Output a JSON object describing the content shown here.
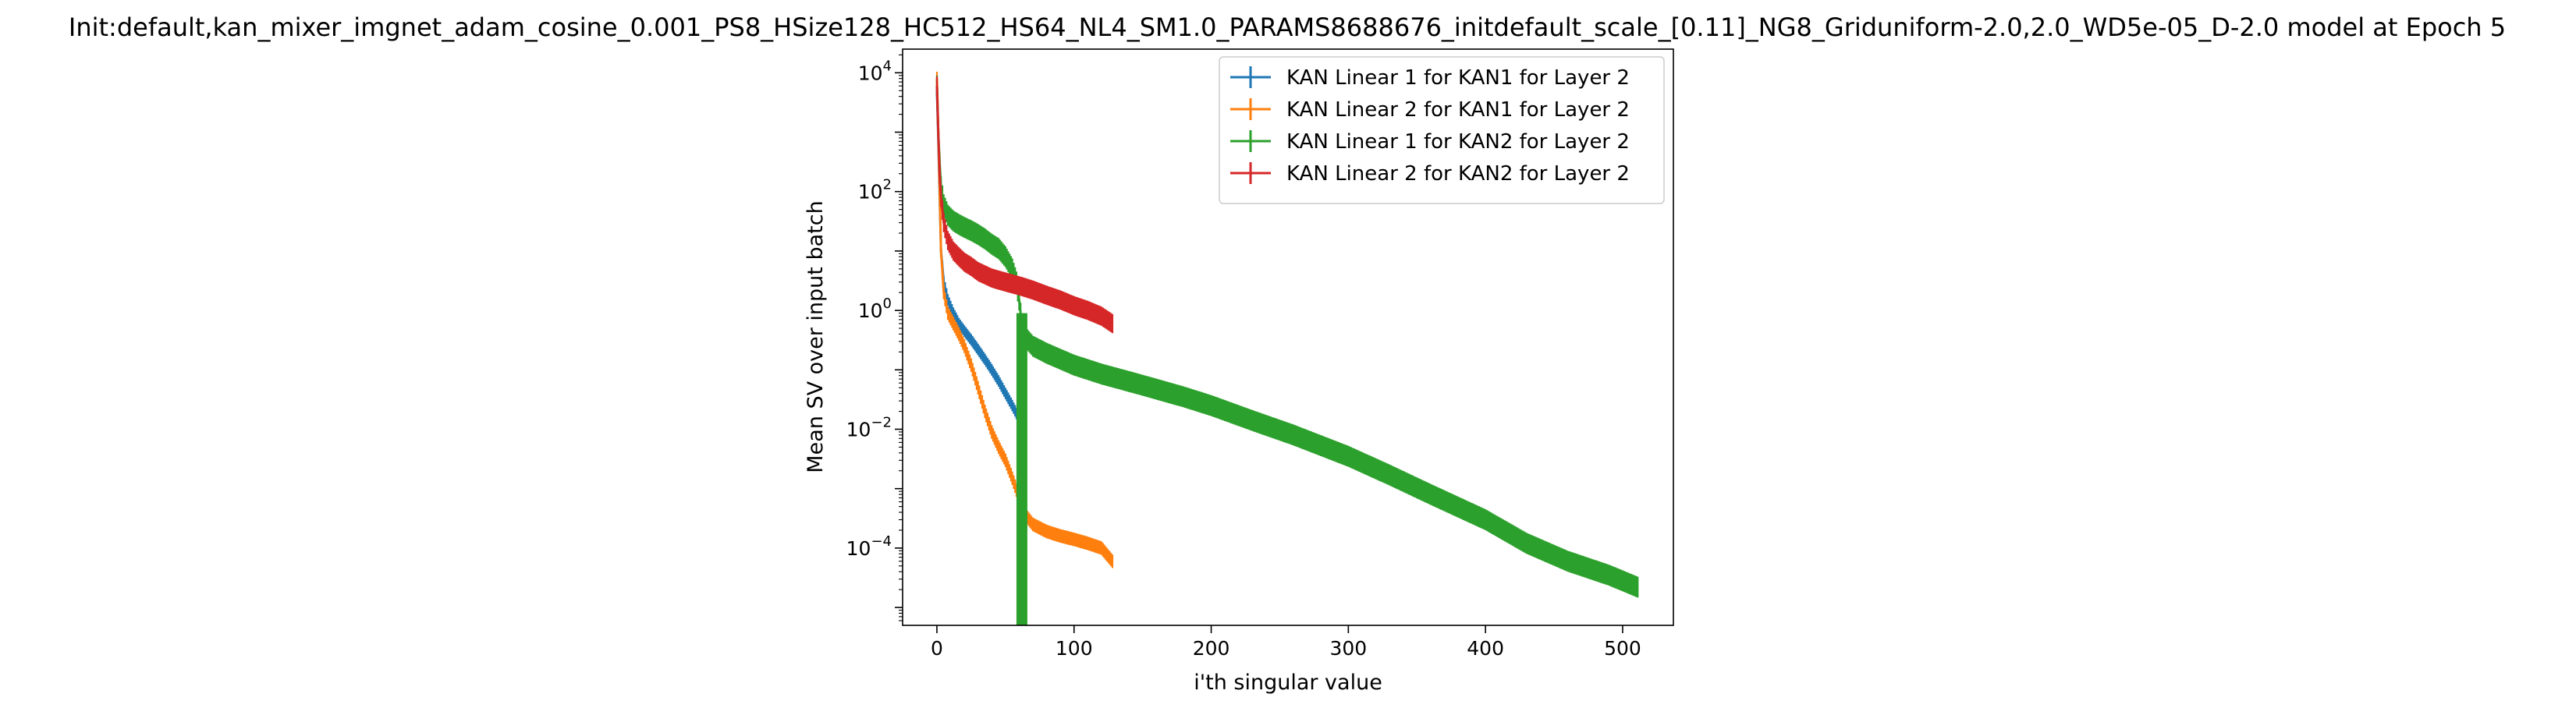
{
  "chart_data": {
    "type": "line",
    "title": "Init:default,kan_mixer_imgnet_adam_cosine_0.001_PS8_HSize128_HC512_HS64_NL4_SM1.0_PARAMS8688676_initdefault_scale_[0.11]_NG8_Griduniform-2.0,2.0_WD5e-05_D-2.0 model at Epoch 5",
    "xlabel": "i'th singular value",
    "ylabel": "Mean SV over input batch",
    "xlim": [
      -25,
      537
    ],
    "ylim": [
      5e-06,
      25000
    ],
    "yscale": "log",
    "grid": false,
    "legend_position": "top-right",
    "x_ticks": [
      {
        "value": 0,
        "label": "0"
      },
      {
        "value": 100,
        "label": "100"
      },
      {
        "value": 200,
        "label": "200"
      },
      {
        "value": 300,
        "label": "300"
      },
      {
        "value": 400,
        "label": "400"
      },
      {
        "value": 500,
        "label": "500"
      }
    ],
    "y_ticks": [
      {
        "value": 0.0001,
        "base": "10",
        "exp": "−4"
      },
      {
        "value": 0.01,
        "base": "10",
        "exp": "−2"
      },
      {
        "value": 1,
        "base": "10",
        "exp": "0"
      },
      {
        "value": 100,
        "base": "10",
        "exp": "2"
      },
      {
        "value": 10000,
        "base": "10",
        "exp": "4"
      }
    ],
    "series": [
      {
        "name": "KAN Linear 1 for KAN1 for Layer 2",
        "color": "#1f77b4",
        "x": [
          0,
          1,
          2,
          3,
          5,
          8,
          12,
          16,
          20,
          25,
          30,
          35,
          40,
          45,
          50,
          55,
          60,
          63
        ],
        "y": [
          5000,
          800,
          80,
          10,
          3,
          1.5,
          0.9,
          0.6,
          0.45,
          0.32,
          0.22,
          0.15,
          0.1,
          0.065,
          0.04,
          0.025,
          0.015,
          0.01
        ],
        "err_ratio": 1.25
      },
      {
        "name": "KAN Linear 2 for KAN1 for Layer 2",
        "color": "#ff7f0e",
        "x": [
          0,
          1,
          2,
          3,
          5,
          8,
          12,
          16,
          20,
          25,
          30,
          35,
          40,
          45,
          50,
          55,
          60,
          65,
          70,
          80,
          90,
          100,
          110,
          120,
          128
        ],
        "y": [
          8000,
          1000,
          100,
          10,
          2,
          0.9,
          0.6,
          0.4,
          0.25,
          0.12,
          0.05,
          0.02,
          0.009,
          0.005,
          0.003,
          0.0015,
          0.0007,
          0.00035,
          0.00025,
          0.00019,
          0.00016,
          0.00014,
          0.00012,
          0.0001,
          6e-05
        ],
        "err_ratio": 1.3
      },
      {
        "name": "KAN Linear 1 for KAN2 for Layer 2",
        "color": "#2ca02c",
        "x": [
          0,
          1,
          2,
          3,
          5,
          8,
          12,
          16,
          20,
          25,
          30,
          35,
          40,
          45,
          50,
          55,
          58,
          60,
          61,
          62,
          63,
          64,
          66,
          70,
          80,
          100,
          120,
          150,
          180,
          200,
          230,
          260,
          300,
          330,
          360,
          400,
          430,
          460,
          490,
          511
        ],
        "y": [
          6000,
          1000,
          300,
          120,
          60,
          40,
          32,
          28,
          25,
          22,
          19,
          16,
          13,
          11,
          8,
          5,
          3,
          1.5,
          0.9,
          0.6,
          0.5,
          0.4,
          0.32,
          0.25,
          0.19,
          0.12,
          0.085,
          0.055,
          0.035,
          0.025,
          0.014,
          0.008,
          0.0035,
          0.0017,
          0.0008,
          0.0003,
          0.00012,
          6e-05,
          3.5e-05,
          2.2e-05
        ],
        "err_ratio": 1.5,
        "drop_x": 62
      },
      {
        "name": "KAN Linear 2 for KAN2 for Layer 2",
        "color": "#d62728",
        "x": [
          0,
          1,
          2,
          3,
          5,
          8,
          12,
          16,
          20,
          25,
          30,
          40,
          50,
          60,
          70,
          80,
          90,
          100,
          110,
          120,
          128
        ],
        "y": [
          6000,
          1000,
          200,
          80,
          30,
          15,
          10,
          8,
          6.5,
          5.5,
          4.5,
          3.5,
          3,
          2.6,
          2.2,
          1.8,
          1.5,
          1.2,
          1,
          0.8,
          0.6
        ],
        "err_ratio": 1.45
      }
    ]
  }
}
